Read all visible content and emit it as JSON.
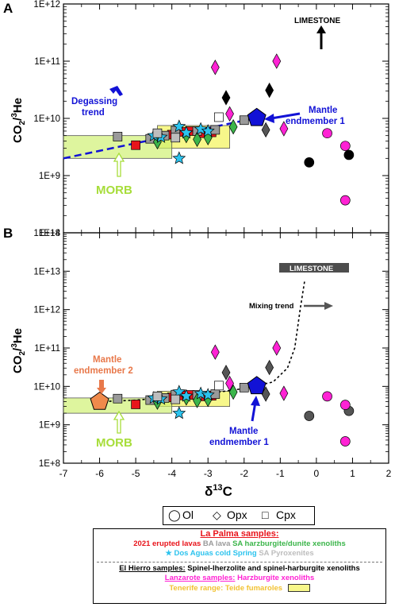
{
  "chart_data": [
    {
      "panel": "A",
      "type": "scatter",
      "xlabel": "δ13C",
      "ylabel": "CO2/3He",
      "yscale": "log",
      "xlim": [
        -7,
        2
      ],
      "ylim": [
        100000000.0,
        1000000000000.0
      ],
      "yticks": [
        "1E+8",
        "1E+9",
        "1E+10",
        "1E+11",
        "1E+12"
      ],
      "annotations": {
        "limestone": "LIMESTONE",
        "degassing": "Degassing trend",
        "mantle1": "Mantle endmember 1",
        "morb": "MORB"
      },
      "series": [
        {
          "name": "2021 erupted lavas",
          "color": "#e8141b",
          "marker": "square",
          "points": [
            [
              -5.0,
              3400000000.0
            ],
            [
              -4.0,
              5200000000.0
            ],
            [
              -3.7,
              5800000000.0
            ],
            [
              -3.5,
              6000000000.0
            ],
            [
              -3.2,
              5500000000.0
            ],
            [
              -2.9,
              5700000000.0
            ]
          ]
        },
        {
          "name": "BA lava",
          "color": "#9a9a9a",
          "marker": "square",
          "points": [
            [
              -5.5,
              4800000000.0
            ],
            [
              -4.6,
              4400000000.0
            ],
            [
              -4.2,
              5000000000.0
            ],
            [
              -3.9,
              6100000000.0
            ],
            [
              -3.3,
              6000000000.0
            ],
            [
              -2.8,
              6300000000.0
            ],
            [
              -2.0,
              9300000000.0
            ]
          ]
        },
        {
          "name": "SA harzburgite/dunite xenoliths",
          "color": "#3bb54a",
          "marker": "diamond",
          "points": [
            [
              -4.4,
              3900000000.0
            ],
            [
              -3.6,
              5000000000.0
            ],
            [
              -3.3,
              4300000000.0
            ],
            [
              -3.0,
              4600000000.0
            ],
            [
              -2.3,
              7100000000.0
            ]
          ]
        },
        {
          "name": "Dos Aguas cold Spring",
          "color": "#2cc3ee",
          "marker": "star",
          "points": [
            [
              -4.5,
              5000000000.0
            ],
            [
              -4.3,
              4700000000.0
            ],
            [
              -3.8,
              7200000000.0
            ],
            [
              -3.6,
              5600000000.0
            ],
            [
              -3.2,
              6500000000.0
            ],
            [
              -3.0,
              6000000000.0
            ],
            [
              -3.8,
              2000000000.0
            ]
          ]
        },
        {
          "name": "SA Pyroxenites",
          "color": "#bdbdbd",
          "marker": "square",
          "points": [
            [
              -4.4,
              5500000000.0
            ],
            [
              -3.9,
              4600000000.0
            ]
          ]
        },
        {
          "name": "Cpx open",
          "color": "#ffffff",
          "marker": "square",
          "points": [
            [
              -2.7,
              10500000000.0
            ]
          ]
        },
        {
          "name": "El Hierro ol",
          "color": "#000000",
          "marker": "circle",
          "points": [
            [
              -0.2,
              1700000000.0
            ],
            [
              0.9,
              2300000000.0
            ]
          ]
        },
        {
          "name": "El Hierro opx",
          "color": "#000000",
          "marker": "diamond",
          "points": [
            [
              -2.5,
              23000000000.0
            ],
            [
              -1.3,
              31000000000.0
            ]
          ]
        },
        {
          "name": "El Hierro opx grey",
          "color": "#555555",
          "marker": "diamond",
          "points": [
            [
              -1.4,
              6300000000.0
            ]
          ]
        },
        {
          "name": "Lanzarote ol",
          "color": "#ff22d4",
          "marker": "circle",
          "points": [
            [
              0.3,
              5500000000.0
            ],
            [
              0.8,
              3300000000.0
            ],
            [
              0.8,
              370000000.0
            ]
          ]
        },
        {
          "name": "Lanzarote opx",
          "color": "#ff22d4",
          "marker": "diamond",
          "points": [
            [
              -2.8,
              78000000000.0
            ],
            [
              -1.1,
              100000000000.0
            ],
            [
              -2.4,
              12000000000.0
            ],
            [
              -0.9,
              6600000000.0
            ]
          ]
        },
        {
          "name": "Mantle endmember 1",
          "color": "#1212d6",
          "marker": "pentagon",
          "points": [
            [
              -1.65,
              10200000000.0
            ]
          ]
        }
      ]
    },
    {
      "panel": "B",
      "type": "scatter",
      "xlabel": "δ13C",
      "ylabel": "CO2/3He",
      "yscale": "log",
      "xlim": [
        -7,
        2
      ],
      "ylim": [
        100000000.0,
        100000000000000.0
      ],
      "yticks": [
        "1E+8",
        "1E+9",
        "1E+10",
        "1E+11",
        "1E+12",
        "1E+13",
        "1E+14"
      ],
      "annotations": {
        "limestone": "LIMESTONE",
        "mixing": "Mixing trend",
        "mantle2": "Mantle endmember 2",
        "mantle1": "Mantle endmember 1",
        "morb": "MORB"
      },
      "series": [
        {
          "name": "2021 erupted lavas",
          "color": "#e8141b",
          "marker": "square",
          "points": [
            [
              -5.0,
              3400000000.0
            ],
            [
              -4.0,
              5200000000.0
            ],
            [
              -3.7,
              5800000000.0
            ],
            [
              -3.5,
              6000000000.0
            ],
            [
              -3.2,
              5500000000.0
            ],
            [
              -2.9,
              5700000000.0
            ]
          ]
        },
        {
          "name": "BA lava",
          "color": "#9a9a9a",
          "marker": "square",
          "points": [
            [
              -5.5,
              4800000000.0
            ],
            [
              -4.6,
              4400000000.0
            ],
            [
              -4.2,
              5000000000.0
            ],
            [
              -3.9,
              6100000000.0
            ],
            [
              -3.3,
              6000000000.0
            ],
            [
              -2.8,
              6300000000.0
            ],
            [
              -2.0,
              9300000000.0
            ]
          ]
        },
        {
          "name": "SA harzburgite/dunite xenoliths",
          "color": "#3bb54a",
          "marker": "diamond",
          "points": [
            [
              -4.4,
              3900000000.0
            ],
            [
              -3.6,
              5000000000.0
            ],
            [
              -3.3,
              4300000000.0
            ],
            [
              -3.0,
              4600000000.0
            ],
            [
              -2.3,
              7100000000.0
            ]
          ]
        },
        {
          "name": "Dos Aguas cold Spring",
          "color": "#2cc3ee",
          "marker": "star",
          "points": [
            [
              -4.5,
              5000000000.0
            ],
            [
              -4.3,
              4700000000.0
            ],
            [
              -3.8,
              7200000000.0
            ],
            [
              -3.6,
              5600000000.0
            ],
            [
              -3.2,
              6500000000.0
            ],
            [
              -3.0,
              6000000000.0
            ],
            [
              -3.8,
              2000000000.0
            ]
          ]
        },
        {
          "name": "SA Pyroxenites",
          "color": "#bdbdbd",
          "marker": "square",
          "points": [
            [
              -4.4,
              5500000000.0
            ],
            [
              -3.9,
              4600000000.0
            ]
          ]
        },
        {
          "name": "Cpx open",
          "color": "#ffffff",
          "marker": "square",
          "points": [
            [
              -2.7,
              10500000000.0
            ]
          ]
        },
        {
          "name": "El Hierro ol",
          "color": "#555555",
          "marker": "circle",
          "points": [
            [
              -0.2,
              1700000000.0
            ],
            [
              0.9,
              2300000000.0
            ]
          ]
        },
        {
          "name": "El Hierro opx grey",
          "color": "#555555",
          "marker": "diamond",
          "points": [
            [
              -2.5,
              23000000000.0
            ],
            [
              -1.3,
              31000000000.0
            ],
            [
              -1.4,
              6300000000.0
            ]
          ]
        },
        {
          "name": "Lanzarote ol",
          "color": "#ff22d4",
          "marker": "circle",
          "points": [
            [
              0.3,
              5500000000.0
            ],
            [
              0.8,
              3300000000.0
            ],
            [
              0.8,
              370000000.0
            ]
          ]
        },
        {
          "name": "Lanzarote opx",
          "color": "#ff22d4",
          "marker": "diamond",
          "points": [
            [
              -2.8,
              78000000000.0
            ],
            [
              -1.1,
              100000000000.0
            ],
            [
              -2.4,
              12000000000.0
            ],
            [
              -0.9,
              6600000000.0
            ]
          ]
        },
        {
          "name": "Mantle endmember 1",
          "color": "#1212d6",
          "marker": "pentagon",
          "points": [
            [
              -1.65,
              10200000000.0
            ]
          ]
        },
        {
          "name": "Mantle endmember 2",
          "color": "#f08a4b",
          "marker": "pentagon",
          "points": [
            [
              -6.0,
              4000000000.0
            ]
          ]
        }
      ]
    }
  ],
  "legend": {
    "shapes": [
      "Ol",
      "Opx",
      "Cpx"
    ],
    "la_palma_title": "La Palma samples:",
    "la_palma_erupted": "2021 erupted lavas",
    "la_palma_ba": "BA lava",
    "la_palma_sa": "SA harzburgite/dunite xenoliths",
    "la_palma_dos": "Dos Aguas cold Spring",
    "la_palma_pyx": "SA Pyroxenites",
    "el_hierro_title": "El Hierro samples:",
    "el_hierro_text": "Spinel-lherzolite and spinel-harburgite xenoliths",
    "lanzarote_title": "Lanzarote samples:",
    "lanzarote_text": "Harzburgite xenoliths",
    "tenerife_title": "Tenerife range:",
    "tenerife_text": "Teide fumaroles"
  },
  "colors": {
    "red": "#e8141b",
    "grey": "#9a9a9a",
    "green": "#3bb54a",
    "cyan": "#2cc3ee",
    "lightgrey": "#bdbdbd",
    "magenta": "#ff22d4",
    "blue": "#1212d6",
    "orange": "#f08a4b",
    "yellow": "#f7f78a",
    "morb": "#cdf06a",
    "tenerife": "#f2c232"
  }
}
